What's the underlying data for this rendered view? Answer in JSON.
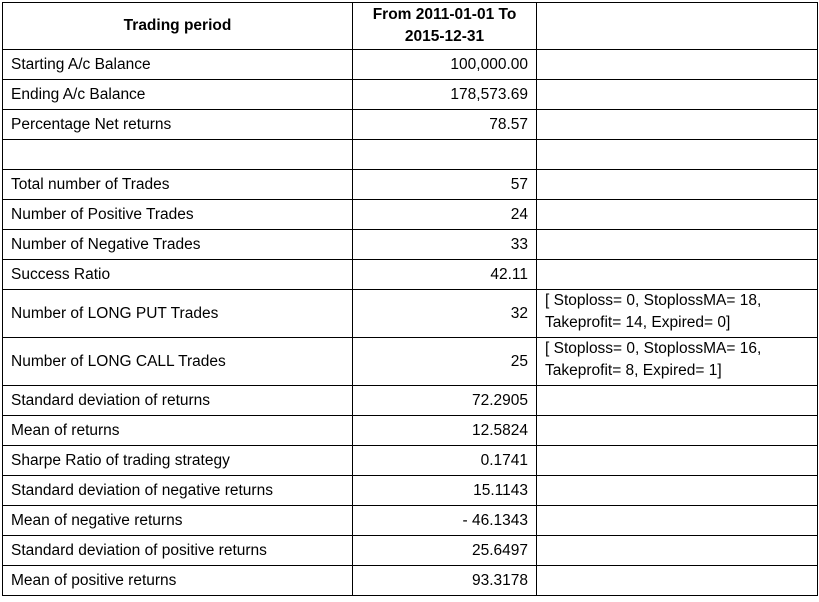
{
  "header": {
    "label": "Trading period",
    "period_line1": "From 2011-01-01 To",
    "period_line2": "2015-12-31"
  },
  "rows": [
    {
      "label": "Starting A/c Balance",
      "value": "100,000.00",
      "note1": "",
      "note2": ""
    },
    {
      "label": "Ending A/c Balance",
      "value": "178,573.69",
      "note1": "",
      "note2": ""
    },
    {
      "label": "Percentage  Net returns",
      "value": "78.57",
      "note1": "",
      "note2": ""
    },
    {
      "label": "",
      "value": "",
      "note1": "",
      "note2": ""
    },
    {
      "label": "Total number of Trades",
      "value": "57",
      "note1": "",
      "note2": ""
    },
    {
      "label": "Number of Positive Trades",
      "value": "24",
      "note1": "",
      "note2": ""
    },
    {
      "label": "Number of Negative  Trades",
      "value": "33",
      "note1": "",
      "note2": ""
    },
    {
      "label": "Success Ratio",
      "value": "42.11",
      "note1": "",
      "note2": ""
    },
    {
      "label": "Number of LONG PUT Trades",
      "value": "32",
      "note1": "[ Stoploss= 0, StoplossMA=  18,",
      "note2": "Takeprofit=  14, Expired= 0]"
    },
    {
      "label": "Number of LONG CALL Trades",
      "value": "25",
      "note1": "[ Stoploss= 0, StoplossMA=  16,",
      "note2": "Takeprofit=  8, Expired= 1]"
    },
    {
      "label": "Standard deviation of returns",
      "value": "72.2905",
      "note1": "",
      "note2": ""
    },
    {
      "label": "Mean of returns",
      "value": "12.5824",
      "note1": "",
      "note2": ""
    },
    {
      "label": "Sharpe Ratio of trading strategy",
      "value": "0.1741",
      "note1": "",
      "note2": ""
    },
    {
      "label": "Standard deviation of negative returns",
      "value": "15.1143",
      "note1": "",
      "note2": ""
    },
    {
      "label": "Mean of negative returns",
      "value": "- 46.1343",
      "note1": "",
      "note2": ""
    },
    {
      "label": "Standard deviation of positive returns",
      "value": "25.6497",
      "note1": "",
      "note2": ""
    },
    {
      "label": "Mean of positive returns",
      "value": "93.3178",
      "note1": "",
      "note2": ""
    }
  ]
}
